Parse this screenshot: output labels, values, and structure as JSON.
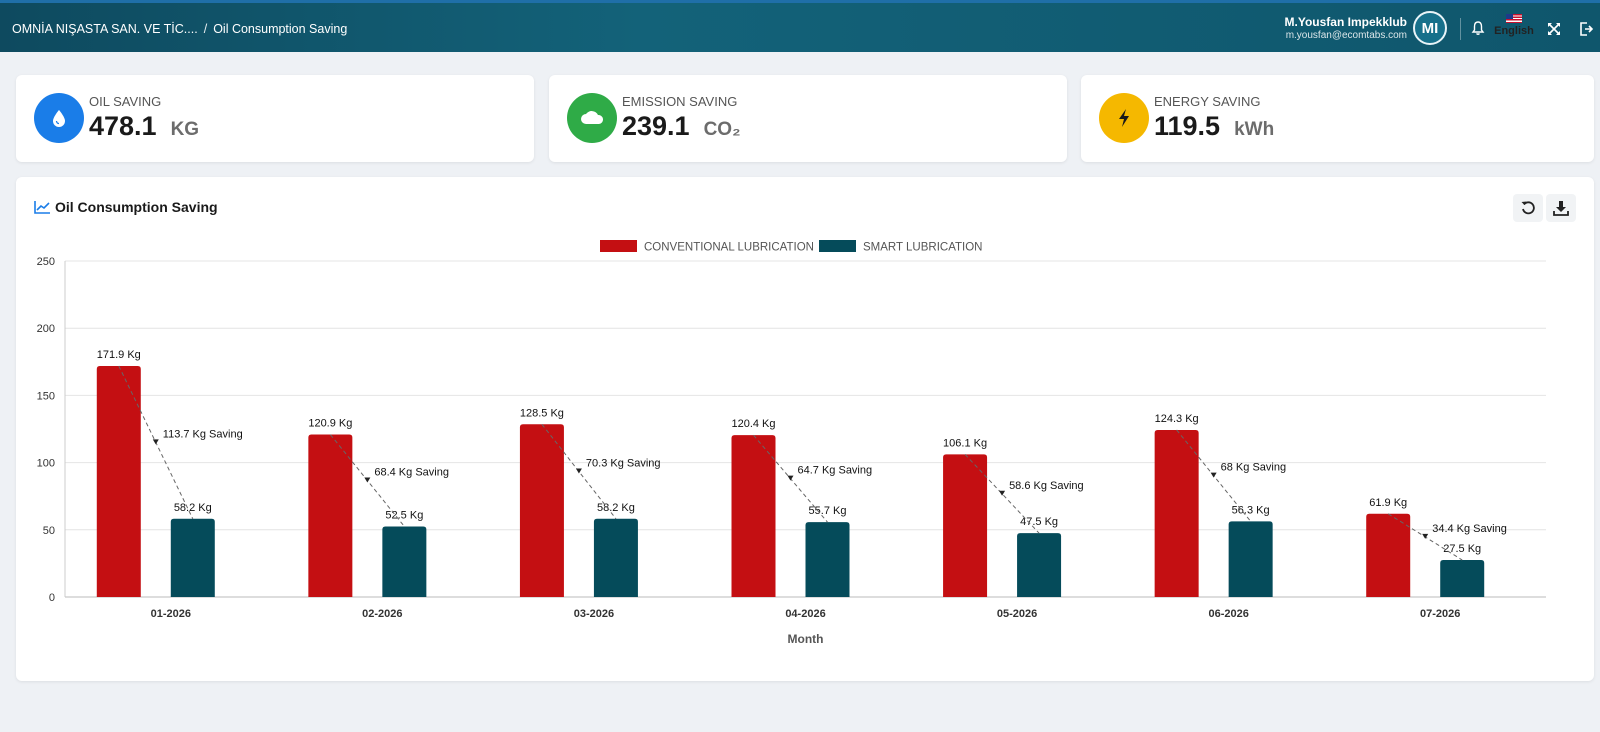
{
  "header": {
    "breadcrumb_company": "OMNİA NIŞASTA SAN. VE TİC....",
    "breadcrumb_sep": "/",
    "breadcrumb_page": "Oil Consumption Saving",
    "user_name": "M.Yousfan Impekklub",
    "user_email": "m.yousfan@ecomtabs.com",
    "avatar_initials": "MI",
    "language": "English"
  },
  "cards": [
    {
      "label": "OIL SAVING",
      "value": "478.1",
      "unit": "KG",
      "icon": "droplet-icon",
      "color": "#1a7de8"
    },
    {
      "label": "EMISSION SAVING",
      "value": "239.1",
      "unit": "CO₂",
      "icon": "cloud-icon",
      "color": "#2fab47"
    },
    {
      "label": "ENERGY SAVING",
      "value": "119.5",
      "unit": "kWh",
      "icon": "lightning-icon",
      "color": "#f5b800"
    }
  ],
  "panel": {
    "title": "Oil Consumption Saving",
    "icon": "chart-line-icon",
    "refresh_icon": "refresh-icon",
    "download_icon": "download-icon"
  },
  "chart_data": {
    "type": "bar",
    "categories": [
      "01-2026",
      "02-2026",
      "03-2026",
      "04-2026",
      "05-2026",
      "06-2026",
      "07-2026"
    ],
    "series": [
      {
        "name": "CONVENTIONAL LUBRICATION",
        "color": "#c40f12",
        "values": [
          171.9,
          120.9,
          128.5,
          120.4,
          106.1,
          124.3,
          61.9
        ],
        "labels": [
          "171.9 Kg",
          "120.9 Kg",
          "128.5 Kg",
          "120.4 Kg",
          "106.1 Kg",
          "124.3 Kg",
          "61.9 Kg"
        ]
      },
      {
        "name": "SMART LUBRICATION",
        "color": "#054b5a",
        "values": [
          58.2,
          52.5,
          58.2,
          55.7,
          47.5,
          56.3,
          27.5
        ],
        "labels": [
          "58.2 Kg",
          "52.5 Kg",
          "58.2 Kg",
          "55.7 Kg",
          "47.5 Kg",
          "56.3 Kg",
          "27.5 Kg"
        ]
      }
    ],
    "savings": [
      "113.7 Kg Saving",
      "68.4 Kg Saving",
      "70.3 Kg Saving",
      "64.7 Kg Saving",
      "58.6 Kg Saving",
      "68 Kg Saving",
      "34.4 Kg Saving"
    ],
    "xlabel": "Month",
    "ylabel": "",
    "ylim": [
      0,
      250
    ],
    "yticks": [
      0,
      50,
      100,
      150,
      200,
      250
    ],
    "grid": true,
    "legend_position": "top-center"
  }
}
